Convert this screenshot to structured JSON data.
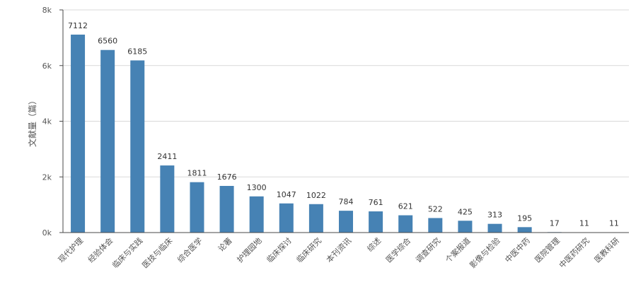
{
  "chart_data": {
    "type": "bar",
    "ylabel": "文献量（篇）",
    "categories": [
      "现代护理",
      "经验体会",
      "临床与实践",
      "医技与临床",
      "综合医学",
      "论著",
      "护理园地",
      "临床探讨",
      "临床研究",
      "本刊资讯",
      "综述",
      "医学综合",
      "调查研究",
      "个案报道",
      "影像与检验",
      "中医中药",
      "医院管理",
      "中医药研究",
      "医教科研"
    ],
    "values": [
      7112,
      6560,
      6185,
      2411,
      1811,
      1676,
      1300,
      1047,
      1022,
      784,
      761,
      621,
      522,
      425,
      313,
      195,
      17,
      11,
      11
    ],
    "ylim": [
      0,
      8000
    ],
    "yticks": [
      "0k",
      "2k",
      "4k",
      "6k",
      "8k"
    ],
    "grid": true,
    "bar_color": "#4682b4"
  }
}
